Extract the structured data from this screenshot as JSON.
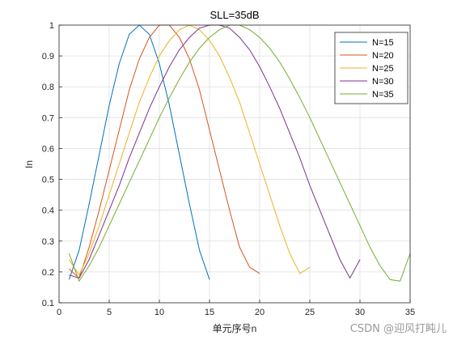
{
  "chart_data": {
    "type": "line",
    "title": "SLL=35dB",
    "xlabel": "单元序号n",
    "ylabel": "In",
    "xlim": [
      0,
      35
    ],
    "ylim": [
      0.1,
      1.0
    ],
    "xticks": [
      "0",
      "5",
      "10",
      "15",
      "20",
      "25",
      "30",
      "35"
    ],
    "yticks": [
      "0.1",
      "0.2",
      "0.3",
      "0.4",
      "0.5",
      "0.6",
      "0.7",
      "0.8",
      "0.9",
      "1"
    ],
    "grid": true,
    "legend_position": "top-right",
    "series": [
      {
        "name": "N=15",
        "color": "#0072BD",
        "x": [
          1,
          2,
          3,
          4,
          5,
          6,
          7,
          8,
          9,
          10,
          11,
          12,
          13,
          14,
          15
        ],
        "y": [
          0.175,
          0.27,
          0.42,
          0.58,
          0.74,
          0.875,
          0.97,
          1.0,
          0.97,
          0.875,
          0.74,
          0.58,
          0.42,
          0.27,
          0.175
        ]
      },
      {
        "name": "N=20",
        "color": "#D95319",
        "x": [
          1,
          2,
          3,
          4,
          5,
          6,
          7,
          8,
          9,
          10,
          11,
          12,
          13,
          14,
          15,
          16,
          17,
          18,
          19,
          20
        ],
        "y": [
          0.21,
          0.18,
          0.28,
          0.4,
          0.53,
          0.66,
          0.79,
          0.89,
          0.96,
          1.0,
          1.0,
          0.96,
          0.89,
          0.79,
          0.66,
          0.53,
          0.4,
          0.28,
          0.215,
          0.195
        ]
      },
      {
        "name": "N=25",
        "color": "#EDB120",
        "x": [
          1,
          2,
          3,
          4,
          5,
          6,
          7,
          8,
          9,
          10,
          11,
          12,
          13,
          14,
          15,
          16,
          17,
          18,
          19,
          20,
          21,
          22,
          23,
          24,
          25
        ],
        "y": [
          0.24,
          0.19,
          0.26,
          0.35,
          0.45,
          0.55,
          0.65,
          0.75,
          0.83,
          0.9,
          0.95,
          0.985,
          1.0,
          0.985,
          0.95,
          0.9,
          0.83,
          0.75,
          0.65,
          0.55,
          0.45,
          0.35,
          0.26,
          0.195,
          0.215
        ]
      },
      {
        "name": "N=30",
        "color": "#7E2F8E",
        "x": [
          1,
          2,
          3,
          4,
          5,
          6,
          7,
          8,
          9,
          10,
          11,
          12,
          13,
          14,
          15,
          16,
          17,
          18,
          19,
          20,
          21,
          22,
          23,
          24,
          25,
          26,
          27,
          28,
          29,
          30
        ],
        "y": [
          0.19,
          0.18,
          0.24,
          0.32,
          0.4,
          0.48,
          0.57,
          0.65,
          0.73,
          0.8,
          0.865,
          0.92,
          0.96,
          0.99,
          1.0,
          1.0,
          0.99,
          0.96,
          0.92,
          0.865,
          0.8,
          0.73,
          0.65,
          0.57,
          0.48,
          0.4,
          0.32,
          0.24,
          0.18,
          0.24
        ]
      },
      {
        "name": "N=35",
        "color": "#77AC30",
        "x": [
          1,
          2,
          3,
          4,
          5,
          6,
          7,
          8,
          9,
          10,
          11,
          12,
          13,
          14,
          15,
          16,
          17,
          18,
          19,
          20,
          21,
          22,
          23,
          24,
          25,
          26,
          27,
          28,
          29,
          30,
          31,
          32,
          33,
          34,
          35
        ],
        "y": [
          0.26,
          0.17,
          0.22,
          0.28,
          0.35,
          0.42,
          0.49,
          0.56,
          0.63,
          0.7,
          0.765,
          0.825,
          0.88,
          0.925,
          0.96,
          0.985,
          1.0,
          1.0,
          0.985,
          0.96,
          0.925,
          0.88,
          0.825,
          0.765,
          0.7,
          0.63,
          0.56,
          0.49,
          0.42,
          0.35,
          0.28,
          0.22,
          0.175,
          0.17,
          0.26
        ]
      }
    ]
  },
  "watermark": "CSDN @迎风打盹儿"
}
